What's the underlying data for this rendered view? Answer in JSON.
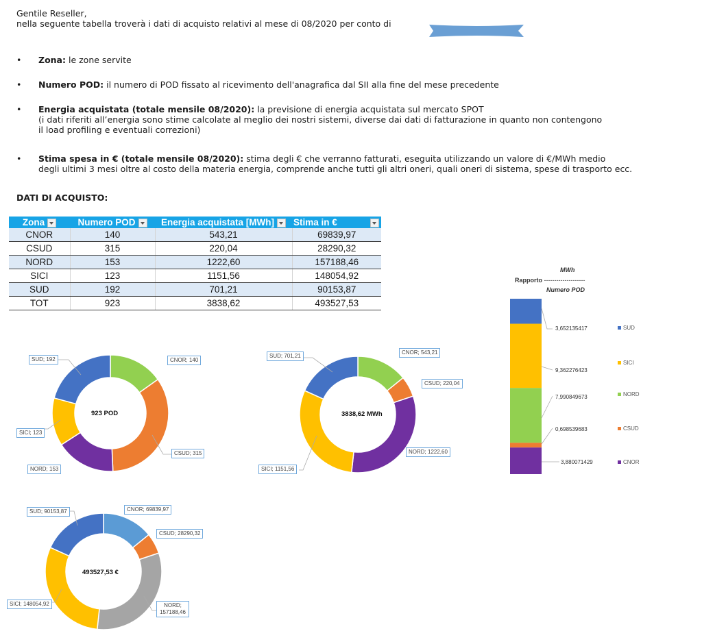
{
  "letter": {
    "greeting": "Gentile Reseller,",
    "intro": "nella seguente tabella troverà i dati di acquisto relativi al mese di 08/2020 per conto di",
    "bullets": [
      {
        "term": "Zona:",
        "lines": [
          "le zone servite"
        ]
      },
      {
        "term": "Numero POD:",
        "lines": [
          "il numero di POD fissato al ricevimento dell'anagrafica dal SII alla fine del mese precedente"
        ]
      },
      {
        "term": "Energia acquistata (totale mensile 08/2020):",
        "lines": [
          "la previsione di energia acquistata sul mercato SPOT",
          "(i dati riferiti all’energia sono stime calcolate al meglio dei nostri sistemi, diverse dai dati di fatturazione in quanto non contengono",
          "il load profiling e eventuali correzioni)"
        ]
      },
      {
        "term": "Stima spesa in € (totale mensile 08/2020):",
        "lines": [
          "stima degli € che verranno fatturati, eseguita utilizzando un valore di €/MWh medio",
          "degli ultimi 3 mesi oltre al costo della materia energia, comprende anche tutti gli altri oneri, quali oneri di sistema, spese di trasporto ecc."
        ]
      }
    ],
    "bullet_glyph": "•",
    "section_title": "DATI DI ACQUISTO:"
  },
  "table": {
    "headers": [
      "Zona",
      "Numero POD",
      "Energia acquistata [MWh]",
      "Stima in €"
    ],
    "rows": [
      [
        "CNOR",
        "140",
        "543,21",
        "69839,97"
      ],
      [
        "CSUD",
        "315",
        "220,04",
        "28290,32"
      ],
      [
        "NORD",
        "153",
        "1222,60",
        "157188,46"
      ],
      [
        "SICI",
        "123",
        "1151,56",
        "148054,92"
      ],
      [
        "SUD",
        "192",
        "701,21",
        "90153,87"
      ],
      [
        "TOT",
        "923",
        "3838,62",
        "493527,53"
      ]
    ],
    "header_color": "#17a4e6",
    "alt_row_color": "#dde9f6"
  },
  "chart_data": [
    {
      "type": "pie",
      "subtype": "donut",
      "title": "Numero POD",
      "center_label": "923    POD",
      "categories": [
        "CNOR",
        "CSUD",
        "NORD",
        "SICI",
        "SUD"
      ],
      "values": [
        140,
        315,
        153,
        123,
        192
      ],
      "colors": [
        "#92d050",
        "#ed7d31",
        "#7030a0",
        "#ffc000",
        "#4472c4"
      ],
      "labels": [
        "CNOR; 140",
        "CSUD; 315",
        "NORD; 153",
        "SICI; 123",
        "SUD; 192"
      ]
    },
    {
      "type": "pie",
      "subtype": "donut",
      "title": "Energia acquistata [MWh]",
      "center_label": "3838,62  MWh",
      "categories": [
        "CNOR",
        "CSUD",
        "NORD",
        "SICI",
        "SUD"
      ],
      "values": [
        543.21,
        220.04,
        1222.6,
        1151.56,
        701.21
      ],
      "colors": [
        "#92d050",
        "#ed7d31",
        "#7030a0",
        "#ffc000",
        "#4472c4"
      ],
      "labels": [
        "CNOR; 543,21",
        "CSUD; 220,04",
        "NORD; 1222,60",
        "SICI; 1151,56",
        "SUD; 701,21"
      ]
    },
    {
      "type": "bar",
      "subtype": "stacked",
      "title_top": "MWh",
      "title_left": "Rapporto",
      "title_dashes": "--------------------",
      "title_bottom": "Numero POD",
      "categories": [
        "SUD",
        "SICI",
        "NORD",
        "CSUD",
        "CNOR"
      ],
      "values": [
        3.652135417,
        9.362276423,
        7.990849673,
        0.698539683,
        3.880071429
      ],
      "labels": [
        "3,652135417",
        "9,362276423",
        "7,990849673",
        "0,698539683",
        "3,880071429"
      ],
      "colors": [
        "#4472c4",
        "#ffc000",
        "#92d050",
        "#ed7d31",
        "#7030a0"
      ],
      "legend_position": "right"
    },
    {
      "type": "pie",
      "subtype": "donut",
      "title": "Stima in €",
      "center_label": "493527,53  €",
      "categories": [
        "CNOR",
        "CSUD",
        "NORD",
        "SICI",
        "SUD"
      ],
      "values": [
        69839.97,
        28290.32,
        157188.46,
        148054.92,
        90153.87
      ],
      "colors": [
        "#5b9bd5",
        "#ed7d31",
        "#a5a5a5",
        "#ffc000",
        "#4472c4"
      ],
      "labels": [
        "CNOR; 69839,97",
        "CSUD; 28290,32",
        "NORD; 157188,46",
        "SICI; 148054,92",
        "SUD; 90153,87"
      ]
    }
  ]
}
